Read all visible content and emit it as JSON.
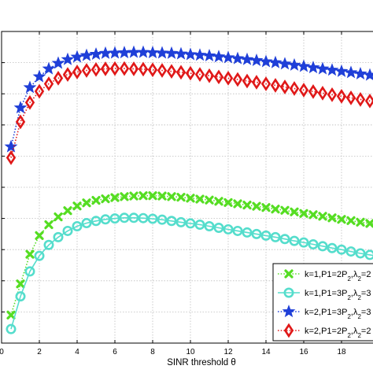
{
  "chart_data": {
    "type": "line",
    "xlabel": "SINR threshold θ",
    "ylabel": "",
    "title": "",
    "xlim": [
      0,
      20
    ],
    "ylim": [
      0,
      10
    ],
    "x_ticks": [
      0,
      2,
      4,
      6,
      8,
      10,
      12,
      14,
      16,
      18
    ],
    "grid": true,
    "legend_position": "bottom-right",
    "x": [
      0.5,
      1,
      1.5,
      2,
      2.5,
      3,
      3.5,
      4,
      4.5,
      5,
      5.5,
      6,
      6.5,
      7,
      7.5,
      8,
      8.5,
      9,
      9.5,
      10,
      10.5,
      11,
      11.5,
      12,
      12.5,
      13,
      13.5,
      14,
      14.5,
      15,
      15.5,
      16,
      16.5,
      17,
      17.5,
      18,
      18.5,
      19,
      19.5,
      20
    ],
    "series": [
      {
        "name": "k=1,P1=2P_2,λ_2=2",
        "color": "#55dd22",
        "marker": "x",
        "line_style": "dotted",
        "values": [
          0.9,
          1.9,
          2.85,
          3.45,
          3.8,
          4.05,
          4.25,
          4.4,
          4.5,
          4.58,
          4.63,
          4.67,
          4.7,
          4.72,
          4.73,
          4.73,
          4.72,
          4.7,
          4.68,
          4.65,
          4.62,
          4.59,
          4.55,
          4.51,
          4.47,
          4.43,
          4.39,
          4.35,
          4.3,
          4.26,
          4.21,
          4.16,
          4.12,
          4.07,
          4.02,
          3.97,
          3.93,
          3.88,
          3.84,
          3.8
        ]
      },
      {
        "name": "k=1,P1=3P_2,λ_2=3",
        "color": "#55ddcc",
        "marker": "o",
        "line_style": "solid",
        "values": [
          0.45,
          1.5,
          2.3,
          2.8,
          3.15,
          3.4,
          3.6,
          3.75,
          3.85,
          3.92,
          3.97,
          4.0,
          4.02,
          4.02,
          4.01,
          3.99,
          3.96,
          3.92,
          3.88,
          3.84,
          3.8,
          3.75,
          3.7,
          3.65,
          3.6,
          3.55,
          3.5,
          3.45,
          3.4,
          3.34,
          3.28,
          3.23,
          3.17,
          3.11,
          3.05,
          3.0,
          2.94,
          2.88,
          2.83,
          2.78
        ]
      },
      {
        "name": "k=2,P1=3P_2,λ_2=3",
        "color": "#1f3fd8",
        "marker": "star",
        "line_style": "dotted",
        "values": [
          6.3,
          7.55,
          8.2,
          8.55,
          8.8,
          8.98,
          9.1,
          9.18,
          9.23,
          9.27,
          9.3,
          9.31,
          9.32,
          9.33,
          9.33,
          9.32,
          9.31,
          9.3,
          9.28,
          9.26,
          9.24,
          9.22,
          9.19,
          9.16,
          9.13,
          9.1,
          9.07,
          9.03,
          9.0,
          8.96,
          8.92,
          8.88,
          8.84,
          8.8,
          8.76,
          8.72,
          8.68,
          8.64,
          8.6,
          8.56
        ]
      },
      {
        "name": "k=2,P1=2P_2,λ_2=2",
        "color": "#e01818",
        "marker": "diamond",
        "line_style": "dotted",
        "values": [
          5.95,
          7.1,
          7.72,
          8.08,
          8.32,
          8.5,
          8.62,
          8.7,
          8.75,
          8.78,
          8.8,
          8.81,
          8.81,
          8.8,
          8.79,
          8.77,
          8.75,
          8.72,
          8.69,
          8.66,
          8.62,
          8.58,
          8.54,
          8.5,
          8.46,
          8.41,
          8.37,
          8.32,
          8.27,
          8.22,
          8.17,
          8.12,
          8.07,
          8.02,
          7.97,
          7.92,
          7.87,
          7.82,
          7.77,
          7.72
        ]
      }
    ]
  }
}
